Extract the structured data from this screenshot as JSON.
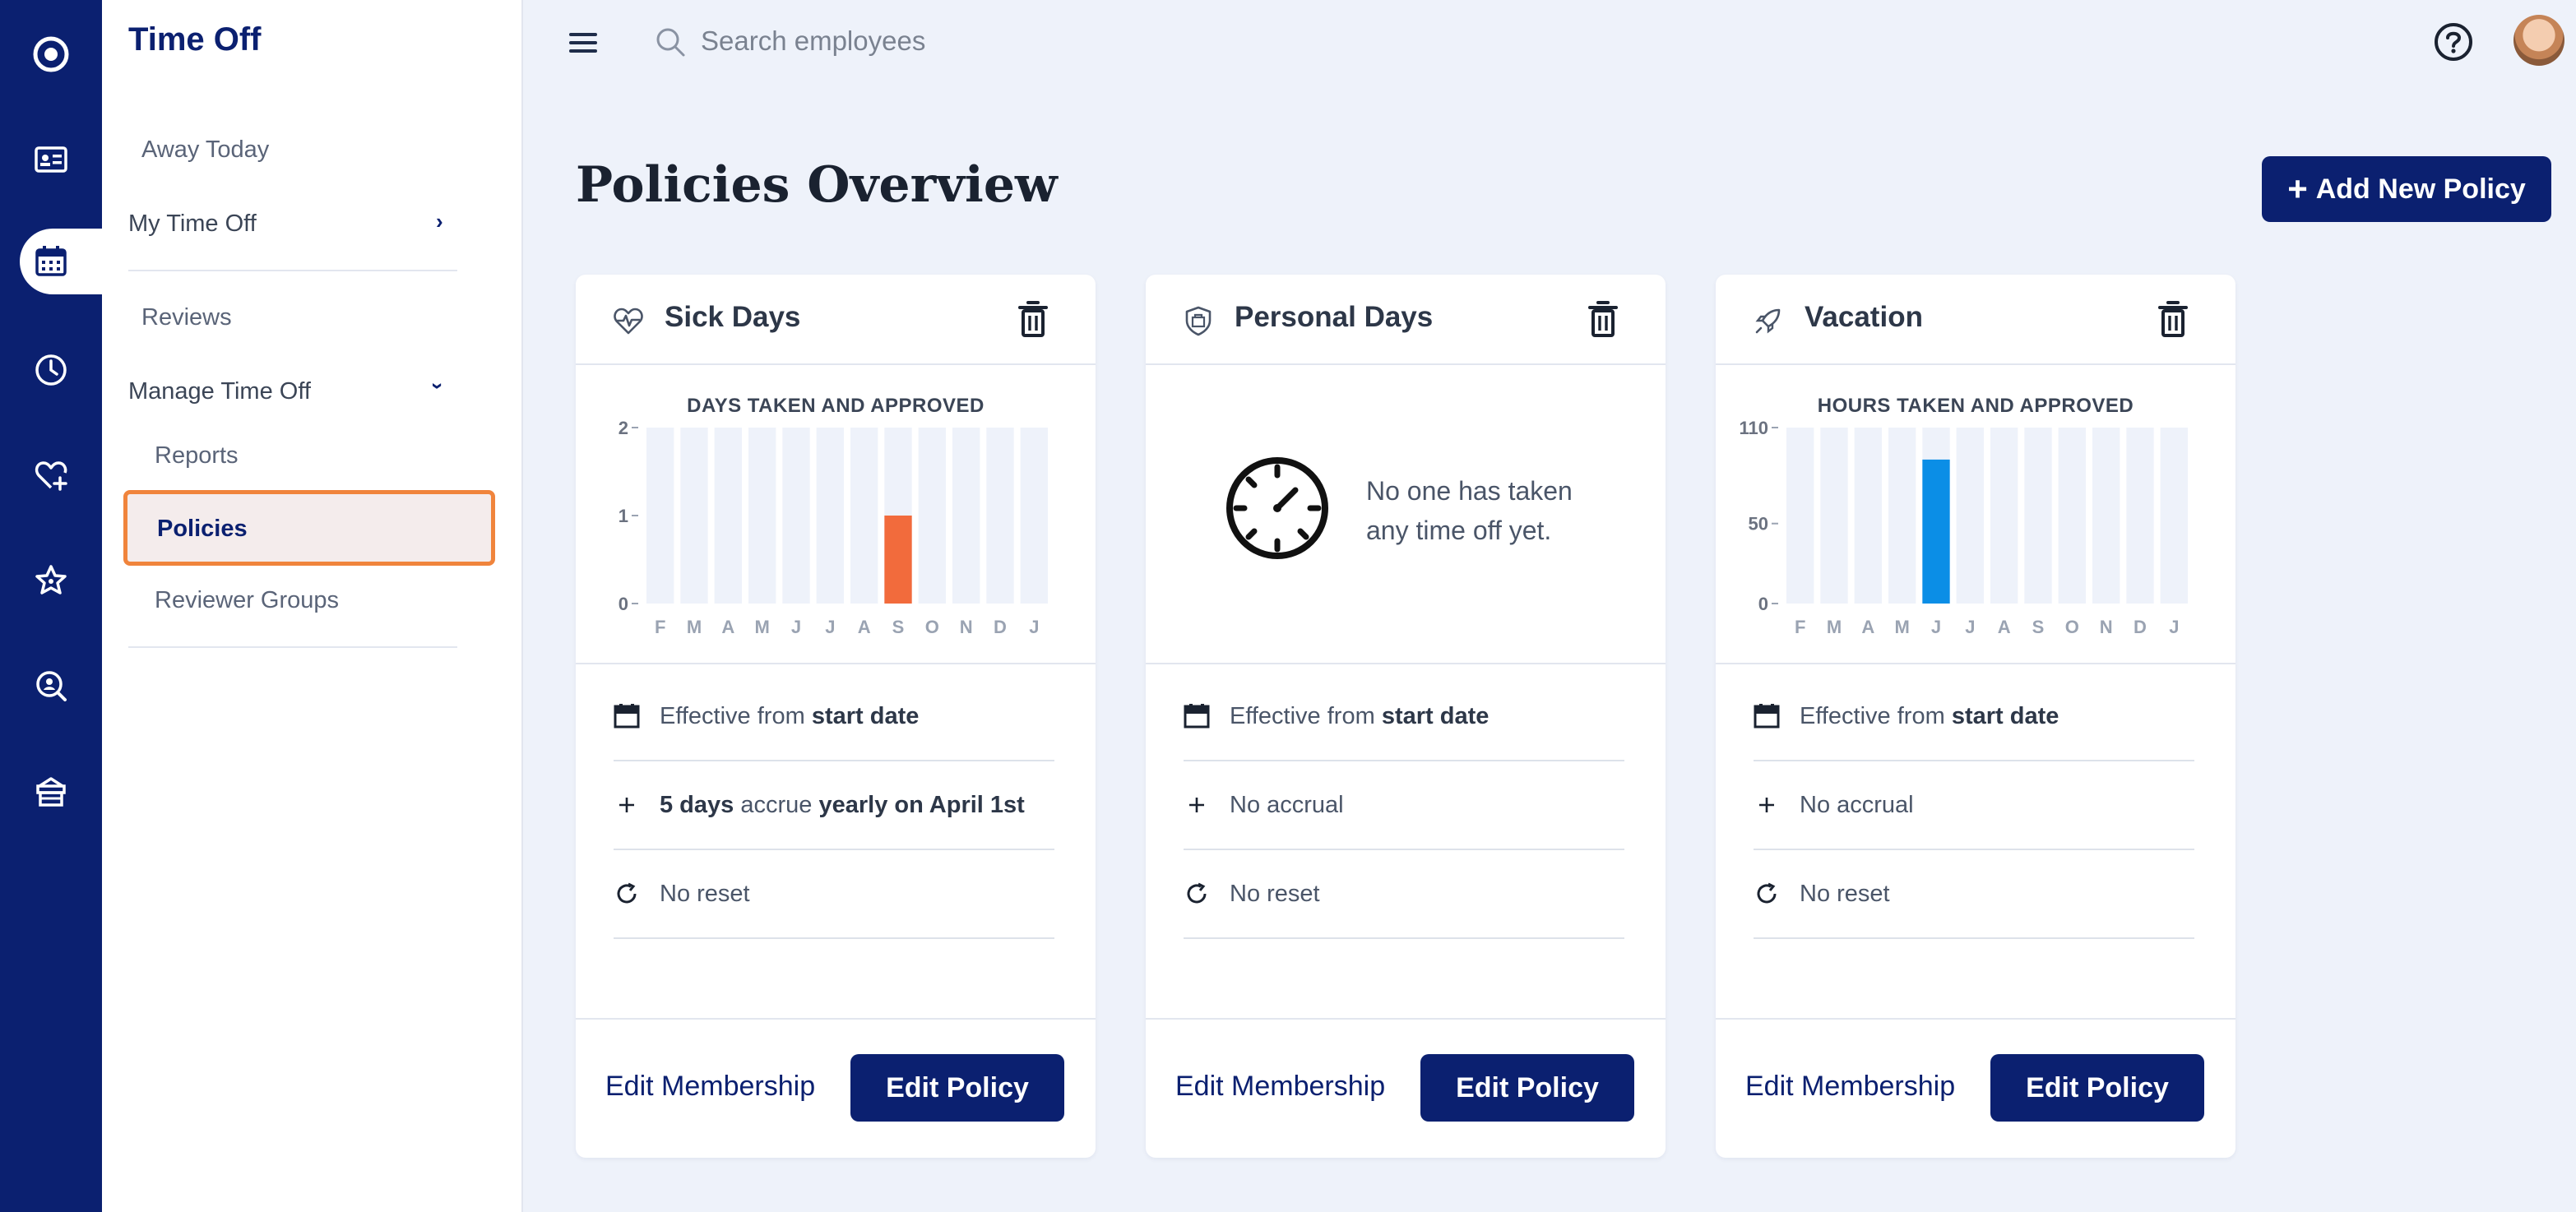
{
  "app": {
    "section_title": "Time Off"
  },
  "rail": {
    "icons": [
      "home-icon",
      "directory-icon",
      "calendar-icon",
      "clock-icon",
      "heart-plus-icon",
      "star-icon",
      "search-person-icon",
      "gift-box-icon"
    ],
    "active": "calendar-icon"
  },
  "subnav": {
    "away_today": "Away Today",
    "my_time_off": "My Time Off",
    "reviews": "Reviews",
    "manage_time_off": "Manage Time Off",
    "reports": "Reports",
    "policies": "Policies",
    "reviewer_groups": "Reviewer Groups"
  },
  "topbar": {
    "search_placeholder": "Search employees"
  },
  "main": {
    "title": "Policies Overview",
    "add_button": "Add New Policy"
  },
  "colors": {
    "brand": "#0b2070",
    "sick_bar": "#f26b3c",
    "vacation_bar": "#0b8ee6",
    "bar_bg": "#eef2fa",
    "highlight": "#f0843c"
  },
  "cards": [
    {
      "title": "Sick Days",
      "icon": "heart-pulse-icon",
      "chart_title": "DAYS TAKEN AND APPROVED",
      "effective_prefix": "Effective from ",
      "effective_value": "start date",
      "accrual_amount": "5 days",
      "accrual_mid": " accrue ",
      "accrual_schedule": "yearly on April 1st",
      "reset": "No reset",
      "edit_membership": "Edit Membership",
      "edit_policy": "Edit Policy"
    },
    {
      "title": "Personal Days",
      "icon": "shield-badge-icon",
      "empty_text": "No one has taken any time off yet.",
      "effective_prefix": "Effective from ",
      "effective_value": "start date",
      "accrual": "No accrual",
      "reset": "No reset",
      "edit_membership": "Edit Membership",
      "edit_policy": "Edit Policy"
    },
    {
      "title": "Vacation",
      "icon": "rocket-icon",
      "chart_title": "HOURS TAKEN AND APPROVED",
      "effective_prefix": "Effective from ",
      "effective_value": "start date",
      "accrual": "No accrual",
      "reset": "No reset",
      "edit_membership": "Edit Membership",
      "edit_policy": "Edit Policy"
    }
  ],
  "chart_data": [
    {
      "type": "bar",
      "title": "DAYS TAKEN AND APPROVED",
      "categories": [
        "F",
        "M",
        "A",
        "M",
        "J",
        "J",
        "A",
        "S",
        "O",
        "N",
        "D",
        "J"
      ],
      "values": [
        0,
        0,
        0,
        0,
        0,
        0,
        0,
        1,
        0,
        0,
        0,
        0
      ],
      "yticks": [
        "0",
        "1",
        "2"
      ],
      "ylim": [
        0,
        2
      ],
      "grid": false
    },
    {
      "type": "bar",
      "title": "HOURS TAKEN AND APPROVED",
      "categories": [
        "F",
        "M",
        "A",
        "M",
        "J",
        "J",
        "A",
        "S",
        "O",
        "N",
        "D",
        "J"
      ],
      "values": [
        0,
        0,
        0,
        0,
        90,
        0,
        0,
        0,
        0,
        0,
        0,
        0
      ],
      "yticks": [
        "0",
        "50",
        "110"
      ],
      "ylim": [
        0,
        110
      ],
      "grid": false
    }
  ]
}
